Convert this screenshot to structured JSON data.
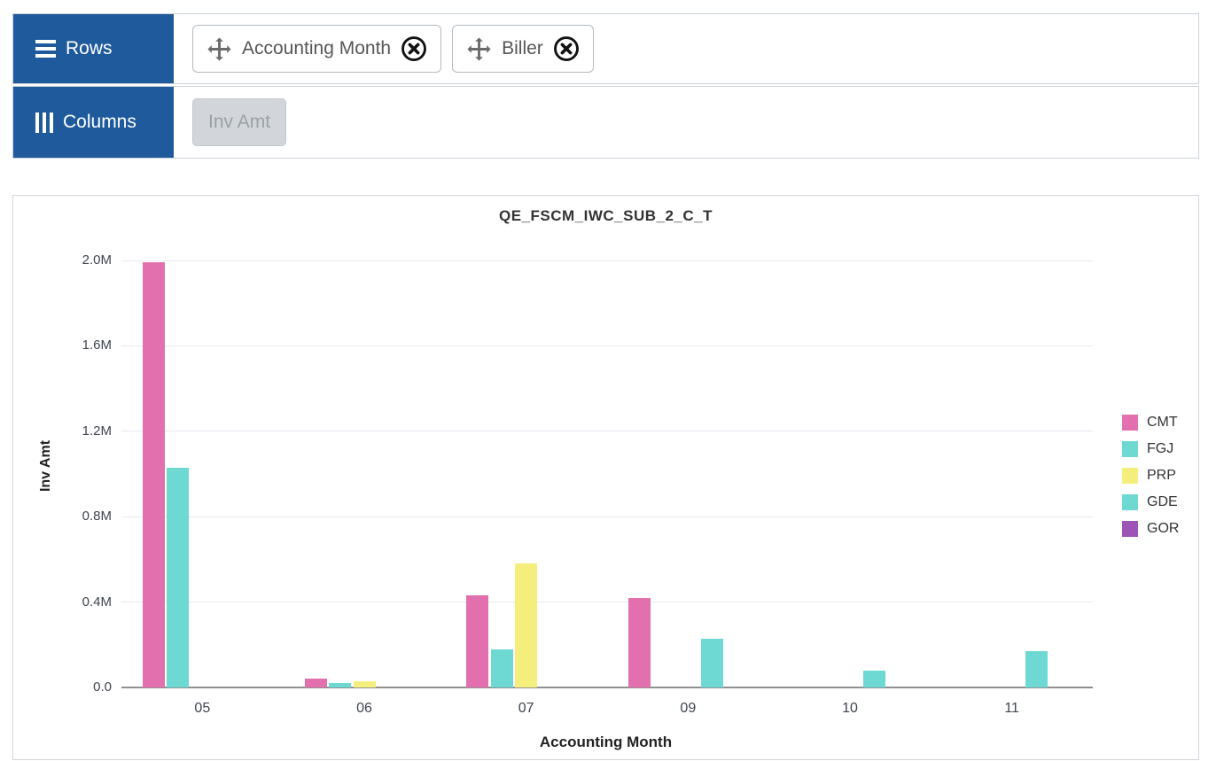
{
  "panel_builder": {
    "rows_label": "Rows",
    "columns_label": "Columns",
    "row_fields": [
      {
        "label": "Accounting Month"
      },
      {
        "label": "Biller"
      }
    ],
    "column_fields": [
      {
        "label": "Inv Amt",
        "disabled": true
      }
    ],
    "header_color": "#1f5b9c"
  },
  "chart_data": {
    "type": "bar",
    "title": "QE_FSCM_IWC_SUB_2_C_T",
    "xlabel": "Accounting Month",
    "ylabel": "Inv Amt",
    "categories": [
      "05",
      "06",
      "07",
      "09",
      "10",
      "11"
    ],
    "series": [
      {
        "name": "CMT",
        "color": "#e26fae",
        "values": [
          1.99,
          0.04,
          0.43,
          0.42,
          null,
          null
        ]
      },
      {
        "name": "FGJ",
        "color": "#6ed9d2",
        "values": [
          1.03,
          0.02,
          0.18,
          null,
          null,
          null
        ]
      },
      {
        "name": "PRP",
        "color": "#f4ef7d",
        "values": [
          null,
          0.03,
          0.58,
          null,
          null,
          null
        ]
      },
      {
        "name": "GDE",
        "color": "#6ed9d2",
        "values": [
          null,
          null,
          null,
          0.23,
          0.08,
          0.17
        ]
      },
      {
        "name": "GOR",
        "color": "#9e54b5",
        "values": [
          null,
          null,
          null,
          null,
          null,
          null
        ]
      }
    ],
    "unit": "M",
    "ylim": [
      0,
      2.0
    ],
    "yticks": [
      0,
      0.4,
      0.8,
      1.2,
      1.6,
      2.0
    ],
    "ytick_labels": [
      "0.0",
      "0.4M",
      "0.8M",
      "1.2M",
      "1.6M",
      "2.0M"
    ],
    "grid": true,
    "legend_position": "right"
  }
}
